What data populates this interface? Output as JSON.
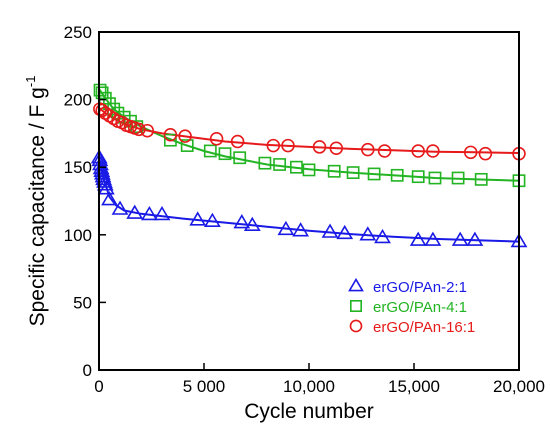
{
  "chart_data": {
    "type": "scatter",
    "xlabel": "Cycle number",
    "ylabel_main": "Specific capacitance / F g",
    "ylabel_sup": "-1",
    "xlim": [
      0,
      20000
    ],
    "ylim": [
      0,
      250
    ],
    "x_ticks": [
      {
        "value": 0,
        "label": "0"
      },
      {
        "value": 5000,
        "label": "5 000"
      },
      {
        "value": 10000,
        "label": "10,000"
      },
      {
        "value": 15000,
        "label": "15,000"
      },
      {
        "value": 20000,
        "label": "20,000"
      }
    ],
    "y_ticks": [
      {
        "value": 0,
        "label": "0"
      },
      {
        "value": 50,
        "label": "50"
      },
      {
        "value": 100,
        "label": "100"
      },
      {
        "value": 150,
        "label": "150"
      },
      {
        "value": 200,
        "label": "200"
      },
      {
        "value": 250,
        "label": "250"
      }
    ],
    "grid": false,
    "legend_position": "bottom-right",
    "series": [
      {
        "name": "erGO/PAn-2:1",
        "color": "#1a1ae6",
        "marker": "triangle",
        "points": [
          [
            10,
            157
          ],
          [
            40,
            155
          ],
          [
            70,
            152
          ],
          [
            100,
            149
          ],
          [
            130,
            147
          ],
          [
            160,
            145
          ],
          [
            190,
            143
          ],
          [
            220,
            141
          ],
          [
            260,
            139
          ],
          [
            300,
            137
          ],
          [
            350,
            134
          ],
          [
            500,
            126
          ],
          [
            1000,
            119
          ],
          [
            1700,
            116
          ],
          [
            2400,
            115
          ],
          [
            3000,
            115
          ],
          [
            4700,
            111
          ],
          [
            5400,
            110
          ],
          [
            6800,
            109
          ],
          [
            7300,
            107
          ],
          [
            8900,
            104
          ],
          [
            9600,
            103
          ],
          [
            11000,
            102
          ],
          [
            11700,
            101
          ],
          [
            12800,
            100
          ],
          [
            13500,
            98
          ],
          [
            15200,
            96
          ],
          [
            15900,
            96
          ],
          [
            17200,
            96
          ],
          [
            17900,
            96
          ],
          [
            20000,
            95
          ]
        ],
        "fit": [
          [
            0,
            158
          ],
          [
            100,
            150
          ],
          [
            250,
            140
          ],
          [
            500,
            128
          ],
          [
            800,
            122
          ],
          [
            1200,
            118
          ],
          [
            2000,
            115.5
          ],
          [
            4000,
            112
          ],
          [
            6000,
            109
          ],
          [
            8000,
            106
          ],
          [
            10000,
            103
          ],
          [
            12000,
            100.5
          ],
          [
            14000,
            98.5
          ],
          [
            16000,
            97
          ],
          [
            18000,
            96
          ],
          [
            20000,
            95
          ]
        ]
      },
      {
        "name": "erGO/PAn-4:1",
        "color": "#22b422",
        "marker": "square",
        "points": [
          [
            50,
            207
          ],
          [
            150,
            205
          ],
          [
            300,
            201
          ],
          [
            500,
            197
          ],
          [
            700,
            193
          ],
          [
            900,
            190
          ],
          [
            1200,
            187
          ],
          [
            1500,
            184
          ],
          [
            1800,
            180
          ],
          [
            3400,
            170
          ],
          [
            4200,
            166
          ],
          [
            5300,
            162
          ],
          [
            6000,
            160
          ],
          [
            6700,
            157
          ],
          [
            7900,
            153
          ],
          [
            8600,
            152
          ],
          [
            9400,
            150
          ],
          [
            10000,
            148
          ],
          [
            11200,
            147
          ],
          [
            12100,
            146
          ],
          [
            13100,
            145
          ],
          [
            14200,
            144
          ],
          [
            15200,
            143
          ],
          [
            16000,
            142
          ],
          [
            17100,
            142
          ],
          [
            18200,
            141
          ],
          [
            20000,
            140
          ]
        ],
        "fit": [
          [
            0,
            208
          ],
          [
            300,
            201
          ],
          [
            700,
            193
          ],
          [
            1200,
            187
          ],
          [
            2000,
            180
          ],
          [
            3000,
            173
          ],
          [
            4000,
            167
          ],
          [
            5000,
            162
          ],
          [
            6000,
            158
          ],
          [
            7000,
            155
          ],
          [
            8000,
            152
          ],
          [
            10000,
            148.5
          ],
          [
            12000,
            146
          ],
          [
            14000,
            144
          ],
          [
            16000,
            142
          ],
          [
            18000,
            141
          ],
          [
            20000,
            140
          ]
        ]
      },
      {
        "name": "erGO/PAn-16:1",
        "color": "#e61a1a",
        "marker": "circle",
        "points": [
          [
            40,
            193
          ],
          [
            150,
            192
          ],
          [
            300,
            190
          ],
          [
            500,
            188
          ],
          [
            700,
            186
          ],
          [
            900,
            184
          ],
          [
            1100,
            183
          ],
          [
            1300,
            181
          ],
          [
            1500,
            180
          ],
          [
            1700,
            179
          ],
          [
            1900,
            178
          ],
          [
            2300,
            177
          ],
          [
            3400,
            174
          ],
          [
            4100,
            173
          ],
          [
            5600,
            171
          ],
          [
            6600,
            169
          ],
          [
            8300,
            166
          ],
          [
            9000,
            166
          ],
          [
            10500,
            165
          ],
          [
            11300,
            164
          ],
          [
            12800,
            163
          ],
          [
            13600,
            162
          ],
          [
            15200,
            162
          ],
          [
            15900,
            162
          ],
          [
            17700,
            161
          ],
          [
            18400,
            160
          ],
          [
            20000,
            160
          ]
        ],
        "fit": [
          [
            0,
            194
          ],
          [
            300,
            190
          ],
          [
            700,
            186
          ],
          [
            1200,
            182
          ],
          [
            2000,
            178
          ],
          [
            3000,
            175
          ],
          [
            4000,
            173
          ],
          [
            6000,
            169
          ],
          [
            8000,
            166.5
          ],
          [
            10000,
            165
          ],
          [
            12000,
            163.5
          ],
          [
            14000,
            162.5
          ],
          [
            16000,
            161.5
          ],
          [
            18000,
            161
          ],
          [
            20000,
            160.5
          ]
        ]
      }
    ]
  }
}
